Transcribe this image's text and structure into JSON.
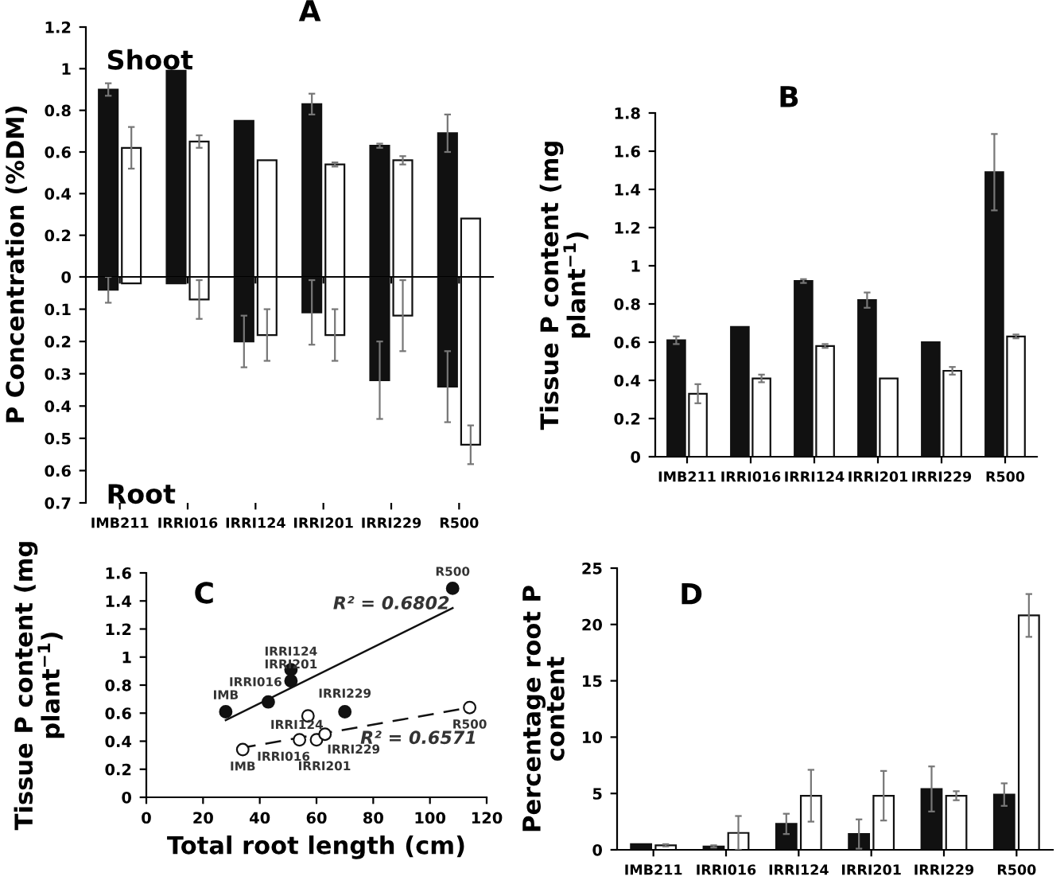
{
  "chart_data": [
    {
      "type": "bar",
      "title": "A",
      "ylabel": "P Concentration (%DM)",
      "categories": [
        null,
        null,
        null,
        null,
        null,
        null
      ],
      "series": [
        {
          "color": "#111111",
          "values": [
            0.9,
            0.99,
            0.75,
            0.83,
            0.63,
            0.69
          ],
          "errors": [
            0.03,
            null,
            null,
            0.05,
            0.01,
            0.09
          ]
        },
        {
          "color": "#ffffff",
          "values": [
            0.62,
            0.65,
            0.56,
            0.54,
            0.56,
            0.28
          ],
          "errors": [
            0.1,
            0.03,
            null,
            0.01,
            0.02,
            null
          ]
        }
      ],
      "ylim": [
        0,
        1.2
      ],
      "yticks": [
        0,
        0.2,
        0.4,
        0.6,
        0.8,
        1,
        1.2
      ],
      "tick_labels": "y",
      "grid": false,
      "annotations": [
        "Shoot"
      ]
    },
    {
      "type": "bar",
      "categories": [
        "IMB211",
        "IRRI016",
        "IRRI124",
        "IRRI201",
        "IRRI229",
        "R500"
      ],
      "series": [
        {
          "color": "#111111",
          "values": [
            0.04,
            0.02,
            0.2,
            0.11,
            0.32,
            0.34
          ],
          "errors": [
            0.04,
            null,
            0.08,
            0.1,
            0.12,
            0.11
          ]
        },
        {
          "color": "#ffffff",
          "values": [
            0.02,
            0.07,
            0.18,
            0.18,
            0.12,
            0.52
          ],
          "errors": [
            null,
            0.06,
            0.08,
            0.08,
            0.11,
            0.06
          ]
        }
      ],
      "ylim": [
        0.7,
        0
      ],
      "yticks": [
        0.1,
        0.2,
        0.3,
        0.4,
        0.5,
        0.6,
        0.7
      ],
      "grid": false,
      "annotations": [
        "Root"
      ]
    },
    {
      "type": "bar",
      "title": "B",
      "ylabel": "Tissue P content (mg\nplant$^{−1}$)",
      "categories": [
        "IMB211",
        "IRRI016",
        "IRRI124",
        "IRRI201",
        "IRRI229",
        "R500"
      ],
      "series": [
        {
          "color": "#111111",
          "values": [
            0.61,
            0.68,
            0.92,
            0.82,
            0.6,
            1.49
          ],
          "errors": [
            0.02,
            null,
            0.01,
            0.04,
            null,
            0.2
          ]
        },
        {
          "color": "#ffffff",
          "values": [
            0.33,
            0.41,
            0.58,
            0.41,
            0.45,
            0.63
          ],
          "errors": [
            0.05,
            0.02,
            0.01,
            null,
            0.02,
            0.01
          ]
        }
      ],
      "ylim": [
        0,
        1.8
      ],
      "yticks": [
        0,
        0.2,
        0.4,
        0.6,
        0.8,
        1,
        1.2,
        1.4,
        1.6,
        1.8
      ],
      "grid": false
    },
    {
      "type": "scatter",
      "title": "C",
      "xlabel": "Total root length (cm)",
      "ylabel": "Tissue P content (mg\nplant$^{−1}$)",
      "series": [
        {
          "color": "#111111",
          "marker": "circle",
          "x": [
            28,
            43,
            51,
            51,
            70,
            108
          ],
          "values": [
            0.61,
            0.68,
            0.91,
            0.83,
            0.61,
            1.49
          ]
        },
        {
          "color": "#ffffff",
          "marker": "circle",
          "x": [
            34,
            54,
            57,
            60,
            63,
            114
          ],
          "values": [
            0.34,
            0.41,
            0.58,
            0.41,
            0.45,
            0.64
          ]
        },
        {
          "type": "line",
          "marker": "none",
          "color": "#111111",
          "line_style": "solid",
          "x": [
            28,
            108
          ],
          "values": [
            0.55,
            1.35
          ]
        },
        {
          "type": "line",
          "marker": "none",
          "color": "#111111",
          "line_style": "dashed",
          "x": [
            33,
            114
          ],
          "values": [
            0.35,
            0.64
          ]
        }
      ],
      "xlim": [
        0,
        120
      ],
      "xticks": [
        0,
        20,
        40,
        60,
        80,
        100,
        120
      ],
      "ylim": [
        0,
        1.6
      ],
      "yticks": [
        0,
        0.2,
        0.4,
        0.6,
        0.8,
        1,
        1.2,
        1.4,
        1.6
      ],
      "grid": false,
      "annotations": [
        {
          "text": "IMB",
          "x": 28,
          "y": 0.61
        },
        {
          "text": "IRRI016",
          "x": 43,
          "y": 0.68
        },
        {
          "text": "IRRI124",
          "x": 51,
          "y": 0.91
        },
        {
          "text": "IRRI201",
          "x": 51,
          "y": 0.83
        },
        {
          "text": "IRRI229",
          "x": 70,
          "y": 0.61
        },
        {
          "text": "R500",
          "x": 108,
          "y": 1.49
        },
        {
          "text": "IMB",
          "x": 34,
          "y": 0.34
        },
        {
          "text": "IRRI016",
          "x": 54,
          "y": 0.41
        },
        {
          "text": "IRRI124",
          "x": 57,
          "y": 0.58
        },
        {
          "text": "IRRI201",
          "x": 60,
          "y": 0.41
        },
        {
          "text": "IRRI229",
          "x": 63,
          "y": 0.45
        },
        {
          "text": "R500",
          "x": 114,
          "y": 0.64
        },
        "R² = 0.6802",
        "R² = 0.6571"
      ]
    },
    {
      "type": "bar",
      "title": "D",
      "ylabel": "Percentage root P\ncontent",
      "categories": [
        "IMB211",
        "IRRI016",
        "IRRI124",
        "IRRI201",
        "IRRI229",
        "R500"
      ],
      "series": [
        {
          "color": "#111111",
          "values": [
            0.5,
            0.3,
            2.3,
            1.4,
            5.4,
            4.9
          ],
          "errors": [
            null,
            0.1,
            0.9,
            1.3,
            2,
            1
          ]
        },
        {
          "color": "#ffffff",
          "values": [
            0.4,
            1.5,
            4.8,
            4.8,
            4.8,
            20.8
          ],
          "errors": [
            0.1,
            1.5,
            2.3,
            2.2,
            0.4,
            1.9
          ]
        }
      ],
      "ylim": [
        0,
        25
      ],
      "yticks": [
        0,
        5,
        10,
        15,
        20,
        25
      ],
      "grid": false
    }
  ]
}
